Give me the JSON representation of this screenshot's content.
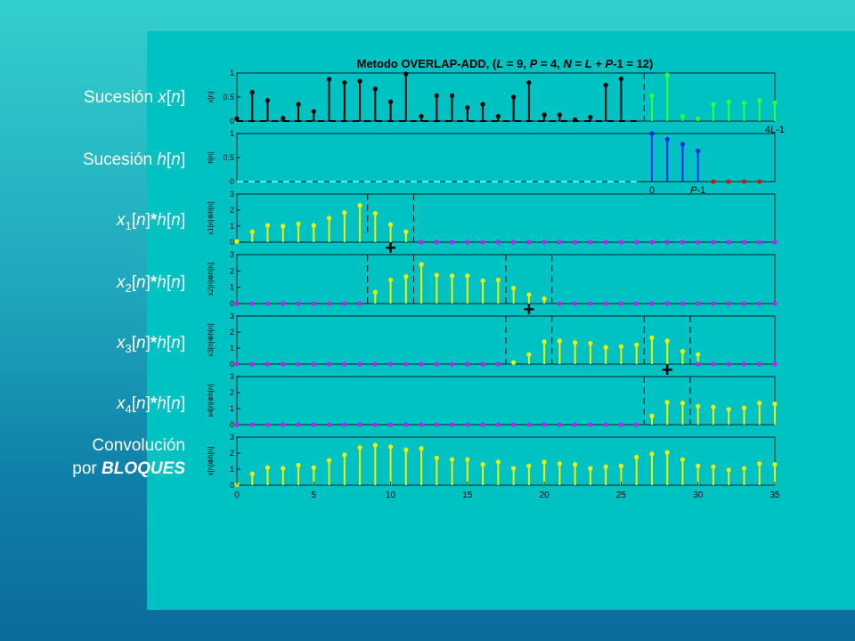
{
  "labels": {
    "x": [
      "Sucesión ",
      "x",
      "[",
      "n",
      "]"
    ],
    "h": [
      "Sucesión ",
      "h",
      "[",
      "n",
      "]"
    ],
    "x1": [
      "x",
      "1",
      "[",
      "n",
      "]",
      "*",
      "h",
      "[",
      "n",
      "]"
    ],
    "x2": [
      "x",
      "2",
      "[",
      "n",
      "]",
      "*",
      "h",
      "[",
      "n",
      "]"
    ],
    "x3": [
      "x",
      "3",
      "[",
      "n",
      "]",
      "*",
      "h",
      "[",
      "n",
      "]"
    ],
    "x4": [
      "x",
      "4",
      "[",
      "n",
      "]",
      "*",
      "h",
      "[",
      "n",
      "]"
    ],
    "conv_line1": "Convolución",
    "conv_line2_prefix": "por ",
    "conv_line2_bold": "BLOQUES"
  },
  "colors": {
    "yellow": "#f2f200",
    "black": "#000000",
    "green": "#33ff33",
    "blue": "#0a27f0",
    "red": "#d21616",
    "magenta": "#c21ef0",
    "cyan_dash": "#33ffff"
  },
  "chart_data": {
    "title": "Metodo OVERLAP-ADD, (L = 9, P = 4, N = L + P-1 = 12)",
    "title_parts": [
      "Metodo OVERLAP-ADD, (",
      "L",
      " = 9, ",
      "P",
      " = 4, ",
      "N",
      " = ",
      "L",
      " + ",
      "P",
      "-1 = 12)"
    ],
    "xlim": [
      0,
      35
    ],
    "xticks": [
      0,
      5,
      10,
      15,
      20,
      25,
      30,
      35
    ],
    "plus_sign": "+",
    "plus_positions": [
      10,
      19,
      28
    ],
    "panels": [
      {
        "ylabel": "x[n]",
        "ylim": [
          0,
          1
        ],
        "yticks": [
          0,
          0.5,
          1
        ],
        "segments": [
          {
            "start": 0,
            "color": "black",
            "values": [
              0.05,
              0.6,
              0.43,
              0.06,
              0.35,
              0.2,
              0.87,
              0.8,
              0.83,
              0.67,
              0.4
            ]
          },
          {
            "start": 11,
            "color": "black",
            "values": [
              0.98,
              0.1,
              0.53,
              0.53,
              0.28,
              0.35,
              0.1,
              0.5,
              0.8,
              0.13,
              0.13,
              0.03,
              0.08,
              0.75,
              0.88
            ]
          },
          {
            "start": 27,
            "color": "green",
            "values": [
              0.53,
              0.96,
              0.1,
              0.05,
              0.35,
              0.4,
              0.38,
              0.43,
              0.38
            ]
          }
        ],
        "dashed_baseline": {
          "from": 0,
          "to": 26,
          "color": "black"
        },
        "vlines": [
          {
            "x": 26.5,
            "ymin": 0,
            "ymax": 1
          }
        ],
        "annotations": [
          {
            "x": 35,
            "text": "4L-1",
            "parts": [
              "4",
              "L",
              "-1"
            ]
          }
        ]
      },
      {
        "ylabel": "h[n]",
        "ylim": [
          0,
          1
        ],
        "yticks": [
          0,
          0.5,
          1
        ],
        "segments": [
          {
            "start": 27,
            "color": "blue",
            "values": [
              1.0,
              0.88,
              0.78,
              0.64
            ]
          },
          {
            "start": 31,
            "color": "red",
            "values": [
              0,
              0,
              0,
              0
            ]
          }
        ],
        "dashed_baseline": {
          "from": 0,
          "to": 26,
          "color": "cyan_dash"
        },
        "vlines": [],
        "annotations": [
          {
            "x": 27,
            "text": "0",
            "parts": [
              "0"
            ]
          },
          {
            "x": 30,
            "text": "P-1",
            "parts": [
              "P",
              "-1"
            ]
          }
        ]
      },
      {
        "ylabel": "x1[n]⊗h[n]",
        "ylim": [
          0,
          3
        ],
        "yticks": [
          0,
          1,
          2,
          3
        ],
        "segments": [
          {
            "start": 0,
            "color": "yellow",
            "values": [
              0.05,
              0.65,
              1.05,
              1.0,
              1.15,
              1.05,
              1.5,
              1.85,
              2.3,
              1.8,
              1.1,
              0.65
            ]
          },
          {
            "start": 12,
            "color": "magenta",
            "values": [
              0,
              0,
              0,
              0,
              0,
              0,
              0,
              0,
              0,
              0,
              0,
              0,
              0,
              0,
              0,
              0,
              0,
              0,
              0,
              0,
              0,
              0,
              0,
              0
            ]
          }
        ],
        "vlines": [
          {
            "x": 8.5,
            "ymin": 0.5,
            "ymax": 3
          },
          {
            "x": 11.5,
            "ymin": 0,
            "ymax": 3
          }
        ]
      },
      {
        "ylabel": "x2[n]⊗h[n]",
        "ylim": [
          0,
          3
        ],
        "yticks": [
          0,
          1,
          2,
          3
        ],
        "segments": [
          {
            "start": 0,
            "color": "magenta",
            "values": [
              0,
              0,
              0,
              0,
              0,
              0,
              0,
              0,
              0
            ]
          },
          {
            "start": 9,
            "color": "yellow",
            "values": [
              0.7,
              1.45,
              1.65,
              2.4,
              1.75,
              1.7,
              1.7,
              1.4,
              1.45,
              0.95,
              0.55,
              0.3
            ]
          },
          {
            "start": 21,
            "color": "magenta",
            "values": [
              0,
              0,
              0,
              0,
              0,
              0,
              0,
              0,
              0,
              0,
              0,
              0,
              0,
              0,
              0
            ]
          }
        ],
        "vlines": [
          {
            "x": 8.5,
            "ymin": 0,
            "ymax": 3
          },
          {
            "x": 11.5,
            "ymin": 0,
            "ymax": 3
          },
          {
            "x": 17.5,
            "ymin": 0,
            "ymax": 3
          },
          {
            "x": 20.5,
            "ymin": 0,
            "ymax": 3
          }
        ]
      },
      {
        "ylabel": "x3[n]⊗h[n]",
        "ylim": [
          0,
          3
        ],
        "yticks": [
          0,
          1,
          2,
          3
        ],
        "segments": [
          {
            "start": 0,
            "color": "magenta",
            "values": [
              0,
              0,
              0,
              0,
              0,
              0,
              0,
              0,
              0,
              0,
              0,
              0,
              0,
              0,
              0,
              0,
              0,
              0
            ]
          },
          {
            "start": 18,
            "color": "yellow",
            "values": [
              0.1,
              0.6,
              1.4,
              1.45,
              1.35,
              1.3,
              1.05,
              1.1,
              1.2,
              1.65,
              1.45,
              0.8,
              0.6
            ]
          },
          {
            "start": 30,
            "color": "magenta",
            "values": [
              0,
              0,
              0,
              0,
              0,
              0
            ]
          }
        ],
        "vlines": [
          {
            "x": 17.5,
            "ymin": 0,
            "ymax": 3
          },
          {
            "x": 20.5,
            "ymin": 0,
            "ymax": 3
          },
          {
            "x": 26.5,
            "ymin": 0,
            "ymax": 3
          },
          {
            "x": 29.5,
            "ymin": 0,
            "ymax": 3
          }
        ]
      },
      {
        "ylabel": "x4[n]⊗h[n]",
        "ylim": [
          0,
          3
        ],
        "yticks": [
          0,
          1,
          2,
          3
        ],
        "segments": [
          {
            "start": 0,
            "color": "magenta",
            "values": [
              0,
              0,
              0,
              0,
              0,
              0,
              0,
              0,
              0,
              0,
              0,
              0,
              0,
              0,
              0,
              0,
              0,
              0,
              0,
              0,
              0,
              0,
              0,
              0,
              0,
              0,
              0
            ]
          },
          {
            "start": 27,
            "color": "yellow",
            "values": [
              0.55,
              1.4,
              1.35,
              1.15,
              1.1,
              0.95,
              1.05,
              1.35,
              1.3
            ]
          }
        ],
        "vlines": [
          {
            "x": 26.5,
            "ymin": 0,
            "ymax": 3
          },
          {
            "x": 29.5,
            "ymin": 0,
            "ymax": 3
          }
        ]
      },
      {
        "ylabel": "x[n]⊗h[n]",
        "ylim": [
          0,
          3
        ],
        "yticks": [
          0,
          1,
          2,
          3
        ],
        "segments": [
          {
            "start": 0,
            "color": "yellow",
            "values": [
              0.05,
              0.7,
              1.1,
              1.05,
              1.25,
              1.1,
              1.55,
              1.9,
              2.35,
              2.5,
              2.4,
              2.2,
              2.3,
              1.7,
              1.6,
              1.6,
              1.3,
              1.45,
              1.05,
              1.2,
              1.45,
              1.35,
              1.3,
              1.05,
              1.15,
              1.2,
              1.75,
              1.95,
              2.05,
              1.6,
              1.2,
              1.15,
              0.95,
              1.05,
              1.35,
              1.3
            ]
          }
        ],
        "vlines": []
      }
    ]
  }
}
